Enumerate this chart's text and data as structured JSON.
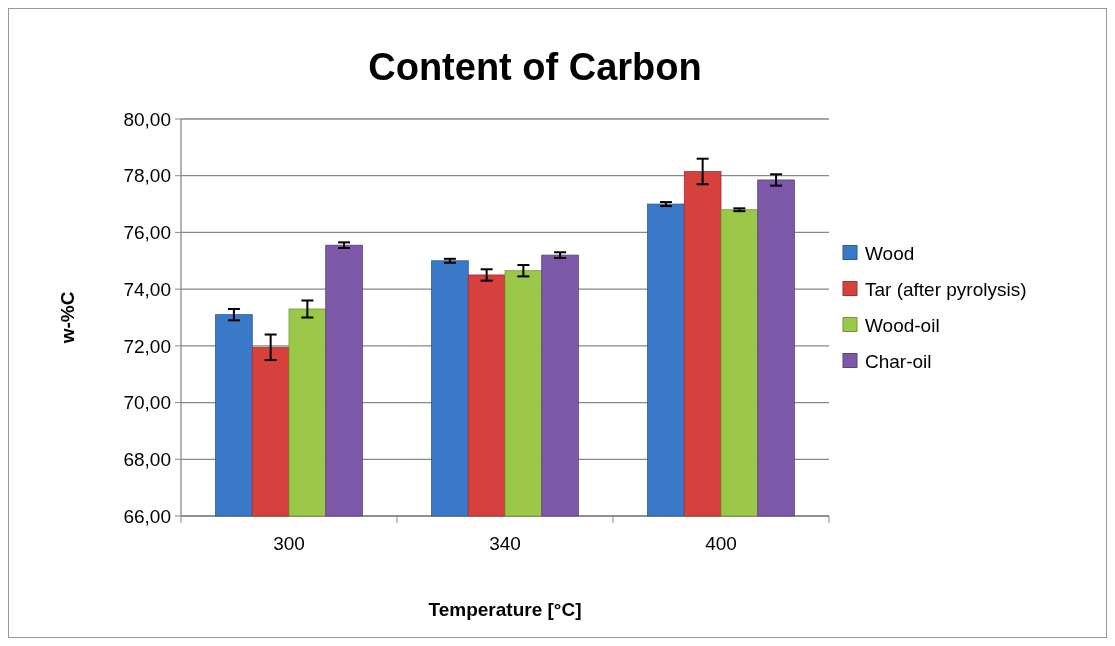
{
  "chart_data": {
    "type": "bar",
    "title": "Content of Carbon",
    "xlabel": "Temperature [°C]",
    "ylabel": "w-%C",
    "categories": [
      "300",
      "340",
      "400"
    ],
    "series": [
      {
        "name": "Wood",
        "color": "#3a78c8",
        "values": [
          73.1,
          75.0,
          77.0
        ],
        "errors": [
          0.2,
          0.07,
          0.07
        ]
      },
      {
        "name": "Tar (after pyrolysis)",
        "color": "#d6403d",
        "values": [
          71.95,
          74.5,
          78.15
        ],
        "errors": [
          0.45,
          0.2,
          0.45
        ]
      },
      {
        "name": "Wood-oil",
        "color": "#9cc84a",
        "values": [
          73.3,
          74.65,
          76.8
        ],
        "errors": [
          0.3,
          0.2,
          0.05
        ]
      },
      {
        "name": "Char-oil",
        "color": "#7d58a8",
        "values": [
          75.55,
          75.2,
          77.85
        ],
        "errors": [
          0.1,
          0.1,
          0.2
        ]
      }
    ],
    "ylim": [
      66,
      80
    ],
    "yticks": [
      {
        "value": 66,
        "label": "66,00"
      },
      {
        "value": 68,
        "label": "68,00"
      },
      {
        "value": 70,
        "label": "70,00"
      },
      {
        "value": 72,
        "label": "72,00"
      },
      {
        "value": 74,
        "label": "74,00"
      },
      {
        "value": 76,
        "label": "76,00"
      },
      {
        "value": 78,
        "label": "78,00"
      },
      {
        "value": 80,
        "label": "80,00"
      }
    ],
    "grid": "y",
    "legend": "right"
  }
}
